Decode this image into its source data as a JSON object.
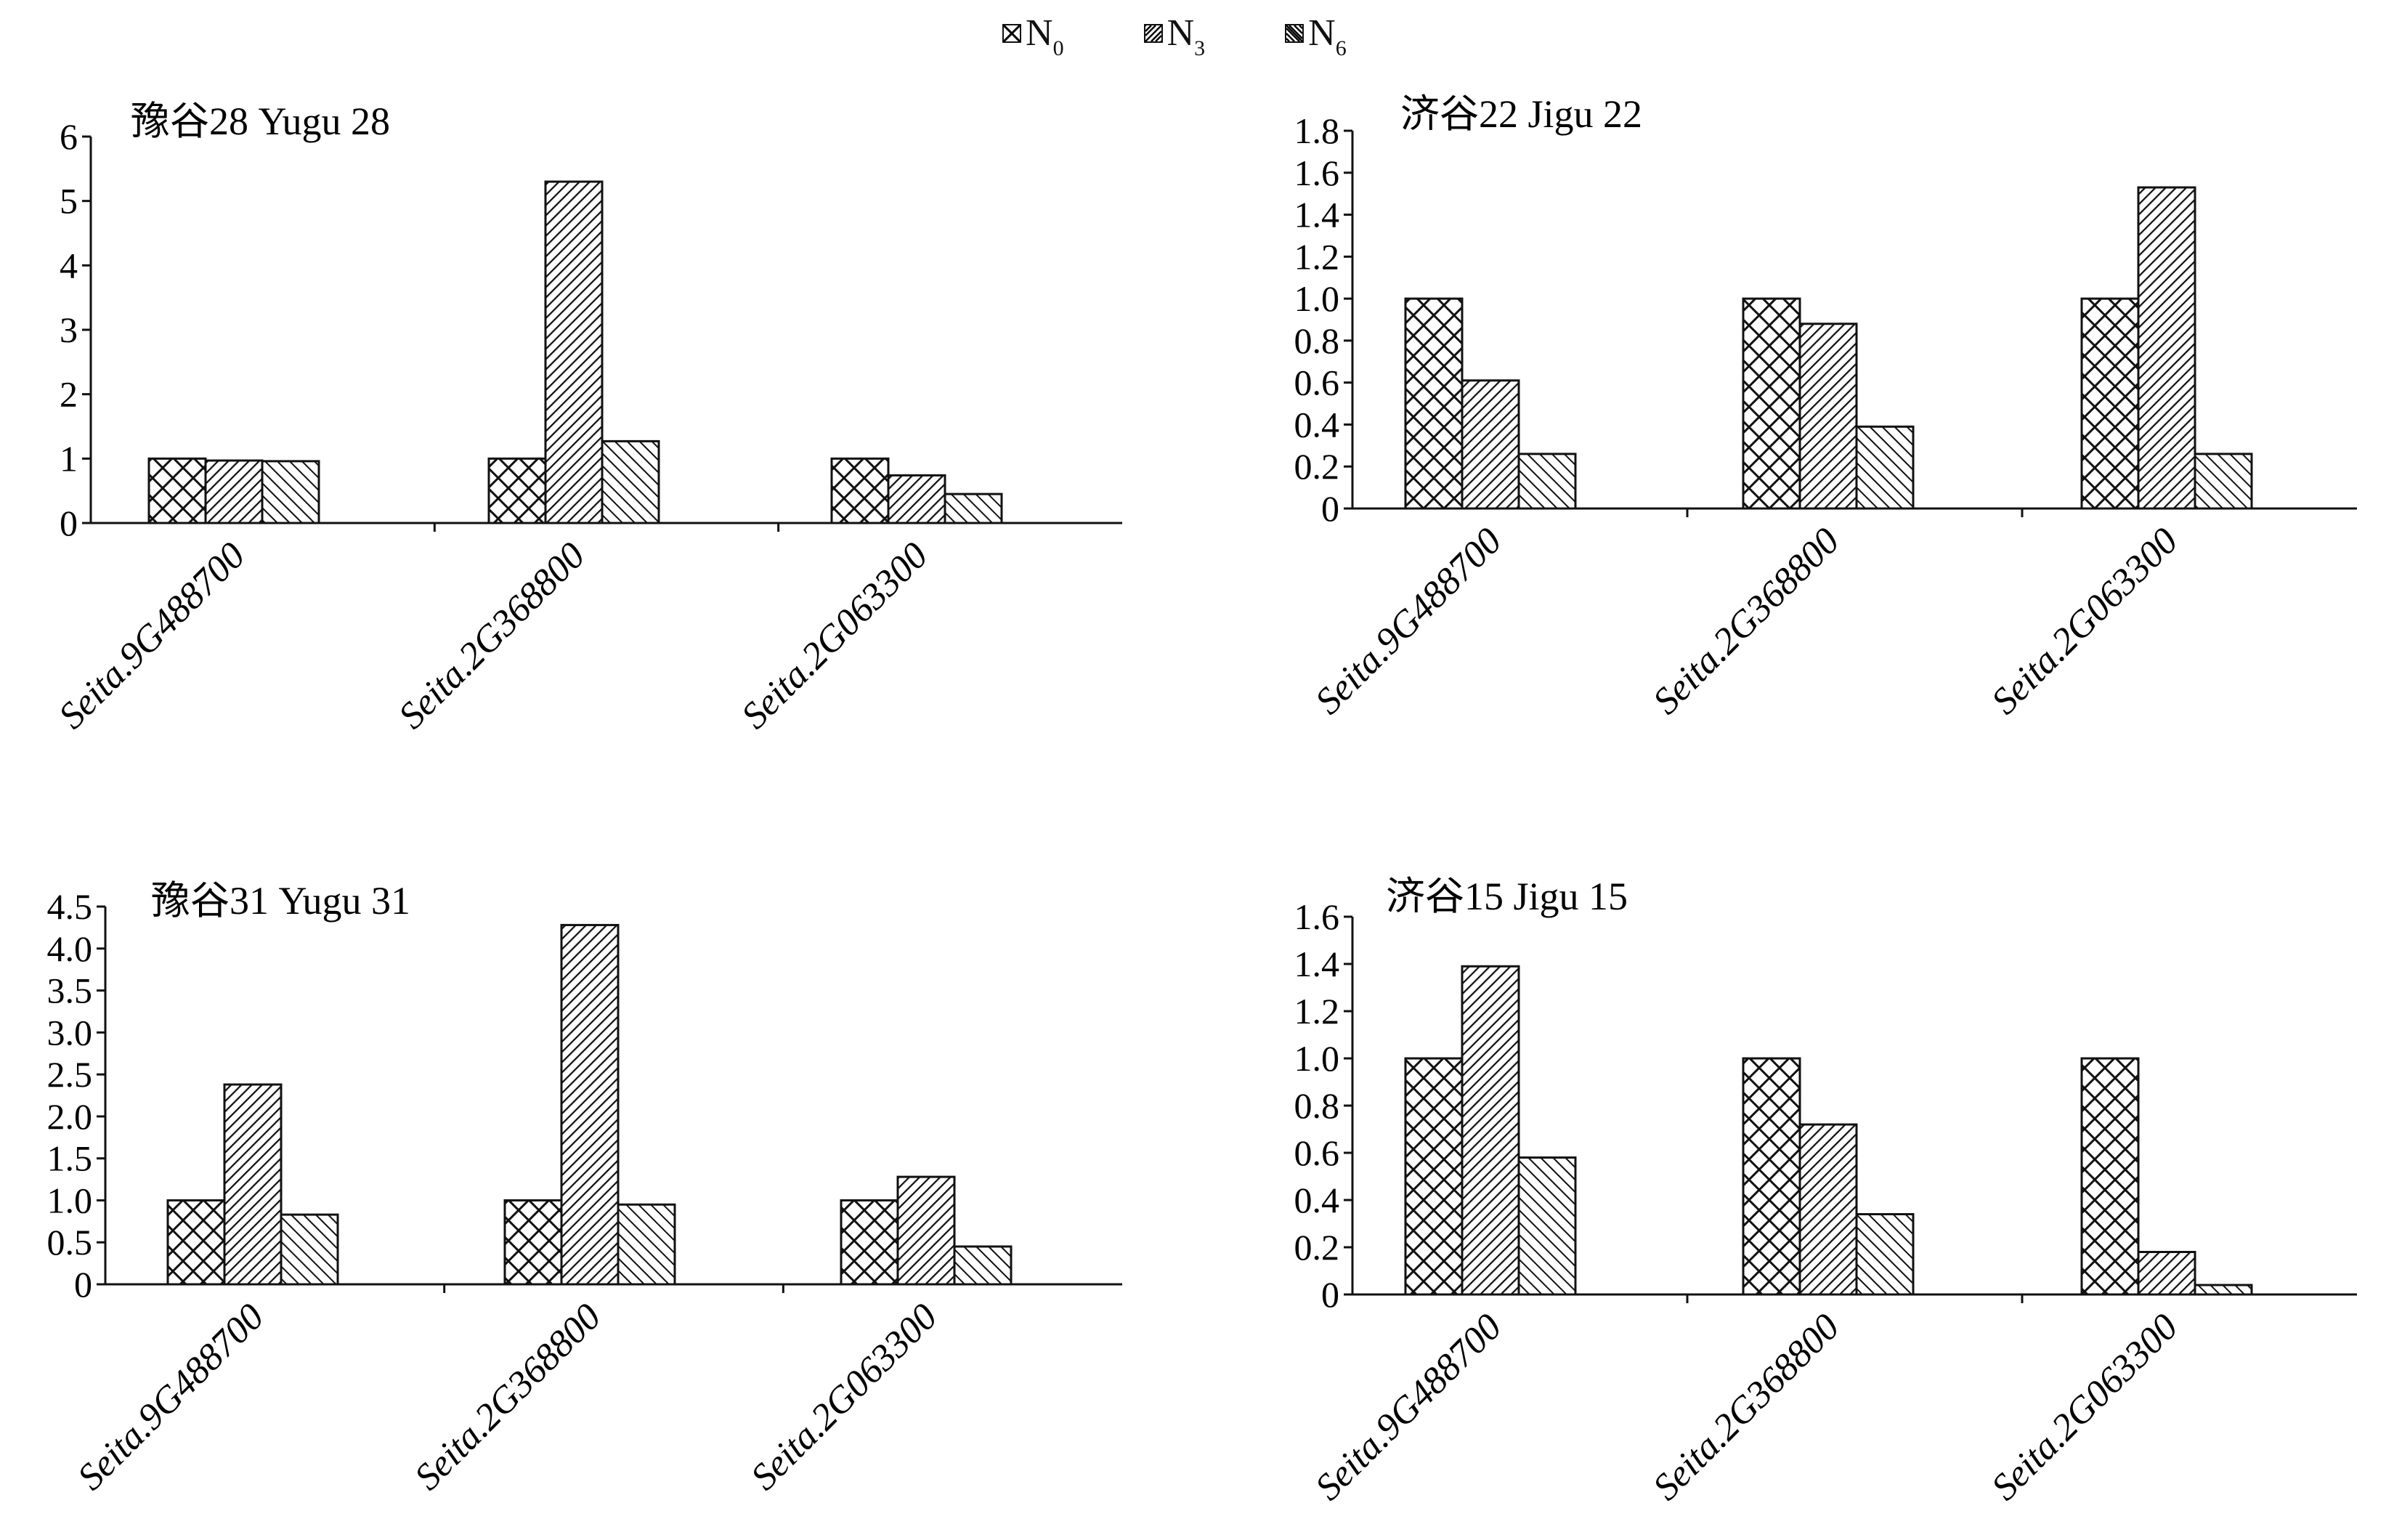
{
  "legend": [
    {
      "base": "N",
      "sub": "0",
      "pattern": "cross"
    },
    {
      "base": "N",
      "sub": "3",
      "pattern": "diag-fine"
    },
    {
      "base": "N",
      "sub": "6",
      "pattern": "diag-coarse"
    }
  ],
  "chart_data": [
    {
      "type": "bar",
      "title": "豫谷28 Yugu 28",
      "categories": [
        "Seita.9G488700",
        "Seita.2G368800",
        "Seita.2G063300"
      ],
      "series": [
        {
          "name": "N0",
          "values": [
            1.0,
            1.0,
            1.0
          ]
        },
        {
          "name": "N3",
          "values": [
            0.97,
            5.3,
            0.74
          ]
        },
        {
          "name": "N6",
          "values": [
            0.96,
            1.27,
            0.45
          ]
        }
      ],
      "ylim": [
        0,
        6
      ],
      "yticks": [
        0,
        1,
        2,
        3,
        4,
        5,
        6
      ],
      "ytick_labels": [
        "0",
        "1",
        "2",
        "3",
        "4",
        "5",
        "6"
      ]
    },
    {
      "type": "bar",
      "title": "济谷22 Jigu 22",
      "categories": [
        "Seita.9G488700",
        "Seita.2G368800",
        "Seita.2G063300"
      ],
      "series": [
        {
          "name": "N0",
          "values": [
            1.0,
            1.0,
            1.0
          ]
        },
        {
          "name": "N3",
          "values": [
            0.61,
            0.88,
            1.53
          ]
        },
        {
          "name": "N6",
          "values": [
            0.26,
            0.39,
            0.26
          ]
        }
      ],
      "ylim": [
        0,
        1.8
      ],
      "yticks": [
        0,
        0.2,
        0.4,
        0.6,
        0.8,
        1.0,
        1.2,
        1.4,
        1.6,
        1.8
      ],
      "ytick_labels": [
        "0",
        "0.2",
        "0.4",
        "0.6",
        "0.8",
        "1.0",
        "1.2",
        "1.4",
        "1.6",
        "1.8"
      ]
    },
    {
      "type": "bar",
      "title": "豫谷31 Yugu 31",
      "categories": [
        "Seita.9G488700",
        "Seita.2G368800",
        "Seita.2G063300"
      ],
      "series": [
        {
          "name": "N0",
          "values": [
            1.0,
            1.0,
            1.0
          ]
        },
        {
          "name": "N3",
          "values": [
            2.38,
            4.28,
            1.28
          ]
        },
        {
          "name": "N6",
          "values": [
            0.83,
            0.95,
            0.45
          ]
        }
      ],
      "ylim": [
        0,
        4.5
      ],
      "yticks": [
        0,
        0.5,
        1.0,
        1.5,
        2.0,
        2.5,
        3.0,
        3.5,
        4.0,
        4.5
      ],
      "ytick_labels": [
        "0",
        "0.5",
        "1.0",
        "1.5",
        "2.0",
        "2.5",
        "3.0",
        "3.5",
        "4.0",
        "4.5"
      ]
    },
    {
      "type": "bar",
      "title": "济谷15 Jigu 15",
      "categories": [
        "Seita.9G488700",
        "Seita.2G368800",
        "Seita.2G063300"
      ],
      "series": [
        {
          "name": "N0",
          "values": [
            1.0,
            1.0,
            1.0
          ]
        },
        {
          "name": "N3",
          "values": [
            1.39,
            0.72,
            0.18
          ]
        },
        {
          "name": "N6",
          "values": [
            0.58,
            0.34,
            0.04
          ]
        }
      ],
      "ylim": [
        0,
        1.6
      ],
      "yticks": [
        0,
        0.2,
        0.4,
        0.6,
        0.8,
        1.0,
        1.2,
        1.4,
        1.6
      ],
      "ytick_labels": [
        "0",
        "0.2",
        "0.4",
        "0.6",
        "0.8",
        "1.0",
        "1.2",
        "1.4",
        "1.6"
      ]
    }
  ]
}
